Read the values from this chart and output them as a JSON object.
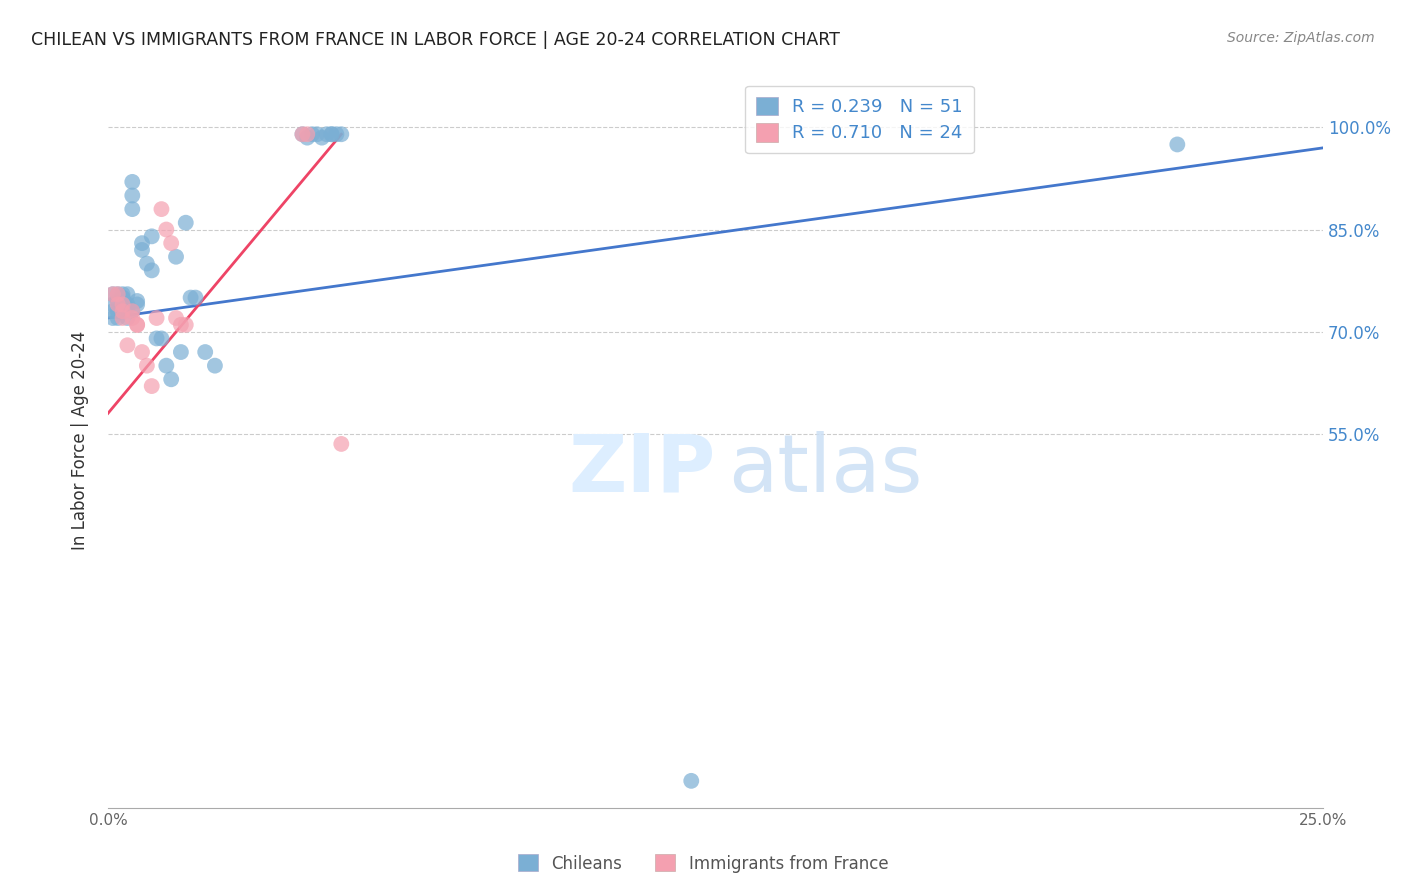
{
  "title": "CHILEAN VS IMMIGRANTS FROM FRANCE IN LABOR FORCE | AGE 20-24 CORRELATION CHART",
  "source": "Source: ZipAtlas.com",
  "ylabel": "In Labor Force | Age 20-24",
  "y_ticks": [
    0.55,
    0.7,
    0.85,
    1.0
  ],
  "y_tick_labels": [
    "55.0%",
    "70.0%",
    "85.0%",
    "100.0%"
  ],
  "x_range": [
    0.0,
    0.25
  ],
  "y_range": [
    0.0,
    1.08
  ],
  "legend_blue_r": "R = 0.239",
  "legend_blue_n": "N = 51",
  "legend_pink_r": "R = 0.710",
  "legend_pink_n": "N = 24",
  "blue_color": "#7BAFD4",
  "pink_color": "#F4A0B0",
  "trendline_blue_color": "#4477CC",
  "trendline_pink_color": "#EE4466",
  "blue_trend_x": [
    0.0,
    0.25
  ],
  "blue_trend_y": [
    0.72,
    0.97
  ],
  "pink_trend_x": [
    0.0,
    0.048
  ],
  "pink_trend_y": [
    0.58,
    0.99
  ],
  "chileans_x": [
    0.001,
    0.001,
    0.001,
    0.001,
    0.002,
    0.002,
    0.002,
    0.002,
    0.003,
    0.003,
    0.003,
    0.003,
    0.003,
    0.004,
    0.004,
    0.004,
    0.004,
    0.005,
    0.005,
    0.005,
    0.005,
    0.006,
    0.006,
    0.007,
    0.007,
    0.008,
    0.009,
    0.009,
    0.01,
    0.011,
    0.012,
    0.013,
    0.014,
    0.015,
    0.016,
    0.017,
    0.018,
    0.02,
    0.022,
    0.04,
    0.041,
    0.042,
    0.043,
    0.044,
    0.045,
    0.046,
    0.046,
    0.047,
    0.048,
    0.12,
    0.22
  ],
  "chileans_y": [
    0.74,
    0.73,
    0.72,
    0.755,
    0.755,
    0.745,
    0.73,
    0.72,
    0.755,
    0.75,
    0.74,
    0.73,
    0.75,
    0.755,
    0.74,
    0.735,
    0.72,
    0.88,
    0.92,
    0.9,
    0.73,
    0.74,
    0.745,
    0.83,
    0.82,
    0.8,
    0.79,
    0.84,
    0.69,
    0.69,
    0.65,
    0.63,
    0.81,
    0.67,
    0.86,
    0.75,
    0.75,
    0.67,
    0.65,
    0.99,
    0.985,
    0.99,
    0.99,
    0.985,
    0.99,
    0.99,
    0.99,
    0.99,
    0.99,
    0.04,
    0.975
  ],
  "france_x": [
    0.001,
    0.002,
    0.002,
    0.003,
    0.003,
    0.003,
    0.004,
    0.005,
    0.005,
    0.006,
    0.006,
    0.007,
    0.008,
    0.009,
    0.01,
    0.011,
    0.012,
    0.013,
    0.014,
    0.015,
    0.016,
    0.04,
    0.041,
    0.048
  ],
  "france_y": [
    0.755,
    0.755,
    0.74,
    0.74,
    0.73,
    0.72,
    0.68,
    0.73,
    0.72,
    0.71,
    0.71,
    0.67,
    0.65,
    0.62,
    0.72,
    0.88,
    0.85,
    0.83,
    0.72,
    0.71,
    0.71,
    0.99,
    0.99,
    0.535
  ]
}
